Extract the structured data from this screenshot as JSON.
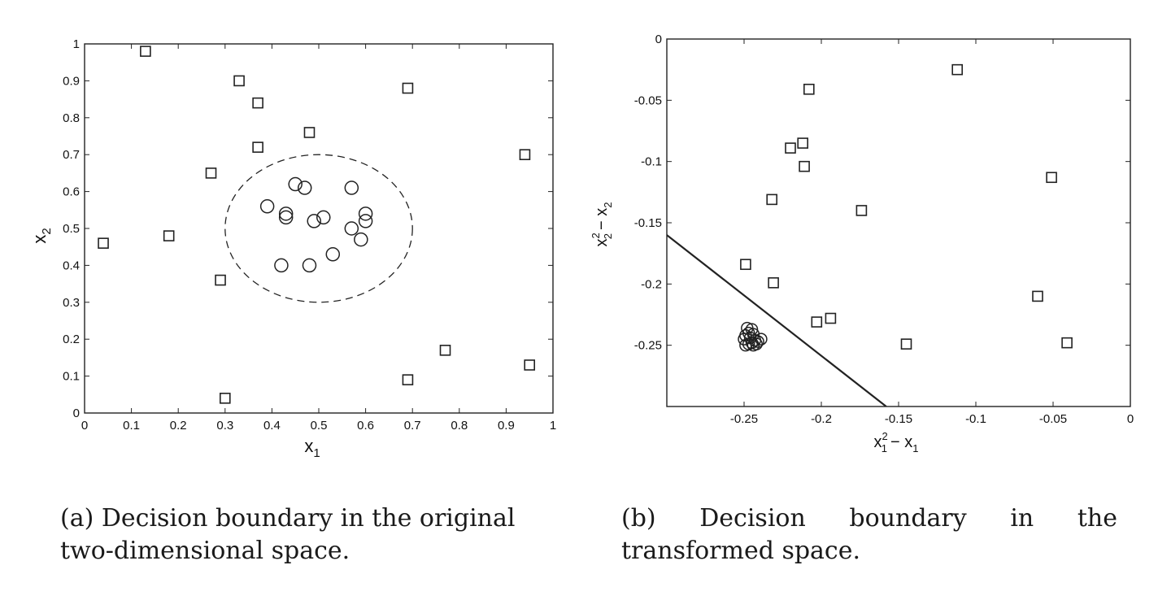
{
  "chart_data": [
    {
      "type": "scatter",
      "title": "",
      "xlabel": "x1",
      "ylabel": "x2",
      "xlim": [
        0,
        1
      ],
      "ylim": [
        0,
        1
      ],
      "xticks": [
        0,
        0.1,
        0.2,
        0.3,
        0.4,
        0.5,
        0.6,
        0.7,
        0.8,
        0.9,
        1
      ],
      "yticks": [
        0,
        0.1,
        0.2,
        0.3,
        0.4,
        0.5,
        0.6,
        0.7,
        0.8,
        0.9,
        1
      ],
      "xtick_labels": [
        "0",
        "0.1",
        "0.2",
        "0.3",
        "0.4",
        "0.5",
        "0.6",
        "0.7",
        "0.8",
        "0.9",
        "1"
      ],
      "ytick_labels": [
        "0",
        "0.1",
        "0.2",
        "0.3",
        "0.4",
        "0.5",
        "0.6",
        "0.7",
        "0.8",
        "0.9",
        "1"
      ],
      "grid": false,
      "series": [
        {
          "marker": "square",
          "points": [
            [
              0.13,
              0.98
            ],
            [
              0.33,
              0.9
            ],
            [
              0.37,
              0.84
            ],
            [
              0.48,
              0.76
            ],
            [
              0.37,
              0.72
            ],
            [
              0.27,
              0.65
            ],
            [
              0.69,
              0.88
            ],
            [
              0.94,
              0.7
            ],
            [
              0.04,
              0.46
            ],
            [
              0.18,
              0.48
            ],
            [
              0.29,
              0.36
            ],
            [
              0.77,
              0.17
            ],
            [
              0.95,
              0.13
            ],
            [
              0.69,
              0.09
            ],
            [
              0.3,
              0.04
            ]
          ]
        },
        {
          "marker": "circle",
          "points": [
            [
              0.45,
              0.62
            ],
            [
              0.47,
              0.61
            ],
            [
              0.57,
              0.61
            ],
            [
              0.39,
              0.56
            ],
            [
              0.43,
              0.54
            ],
            [
              0.43,
              0.53
            ],
            [
              0.49,
              0.52
            ],
            [
              0.51,
              0.53
            ],
            [
              0.6,
              0.54
            ],
            [
              0.6,
              0.52
            ],
            [
              0.57,
              0.5
            ],
            [
              0.59,
              0.47
            ],
            [
              0.42,
              0.4
            ],
            [
              0.48,
              0.4
            ],
            [
              0.53,
              0.43
            ]
          ]
        }
      ],
      "boundary": {
        "shape": "circle",
        "center": [
          0.5,
          0.5
        ],
        "radius": 0.2,
        "style": "dashed"
      }
    },
    {
      "type": "scatter",
      "title": "",
      "xlabel": "x1^2 - x1",
      "ylabel": "x2^2 - x2",
      "xlim": [
        -0.3,
        0
      ],
      "ylim": [
        -0.3,
        0
      ],
      "xticks": [
        -0.25,
        -0.2,
        -0.15,
        -0.1,
        -0.05,
        0
      ],
      "yticks": [
        0,
        -0.05,
        -0.1,
        -0.15,
        -0.2,
        -0.25
      ],
      "xtick_labels": [
        "-0.25",
        "-0.2",
        "-0.15",
        "-0.1",
        "-0.05",
        "0"
      ],
      "ytick_labels": [
        "0",
        "-0.05",
        "-0.1",
        "-0.15",
        "-0.2",
        "-0.25"
      ],
      "grid": false,
      "series": [
        {
          "marker": "square",
          "points": [
            [
              -0.112,
              -0.025
            ],
            [
              -0.208,
              -0.041
            ],
            [
              -0.212,
              -0.085
            ],
            [
              -0.22,
              -0.089
            ],
            [
              -0.211,
              -0.104
            ],
            [
              -0.051,
              -0.113
            ],
            [
              -0.232,
              -0.131
            ],
            [
              -0.174,
              -0.14
            ],
            [
              -0.249,
              -0.184
            ],
            [
              -0.231,
              -0.199
            ],
            [
              -0.06,
              -0.21
            ],
            [
              -0.194,
              -0.228
            ],
            [
              -0.203,
              -0.231
            ],
            [
              -0.145,
              -0.249
            ],
            [
              -0.041,
              -0.248
            ]
          ]
        },
        {
          "marker": "circle",
          "points": [
            [
              -0.248,
              -0.236
            ],
            [
              -0.245,
              -0.237
            ],
            [
              -0.247,
              -0.24
            ],
            [
              -0.249,
              -0.242
            ],
            [
              -0.244,
              -0.241
            ],
            [
              -0.246,
              -0.244
            ],
            [
              -0.25,
              -0.245
            ],
            [
              -0.243,
              -0.246
            ],
            [
              -0.245,
              -0.248
            ],
            [
              -0.247,
              -0.249
            ],
            [
              -0.249,
              -0.25
            ],
            [
              -0.241,
              -0.247
            ],
            [
              -0.239,
              -0.245
            ],
            [
              -0.244,
              -0.25
            ],
            [
              -0.242,
              -0.249
            ]
          ]
        }
      ],
      "boundary": {
        "shape": "line",
        "from": [
          -0.3,
          -0.16
        ],
        "to": [
          -0.158,
          -0.3
        ],
        "style": "solid"
      }
    }
  ],
  "captions": {
    "a": "(a) Decision boundary in the original two-dimensional space.",
    "b": "(b) Decision boundary in the transformed space."
  },
  "axis_labels": {
    "a_x_base": "x",
    "a_x_sub": "1",
    "a_y_base": "x",
    "a_y_sub": "2",
    "b_x_base1": "x",
    "b_x_sup": "2",
    "b_x_sub1": "1",
    "b_x_rest": "− x",
    "b_x_sub2": "1",
    "b_y_base1": "x",
    "b_y_sup": "2",
    "b_y_sub1": "2",
    "b_y_rest": "− x",
    "b_y_sub2": "2"
  }
}
